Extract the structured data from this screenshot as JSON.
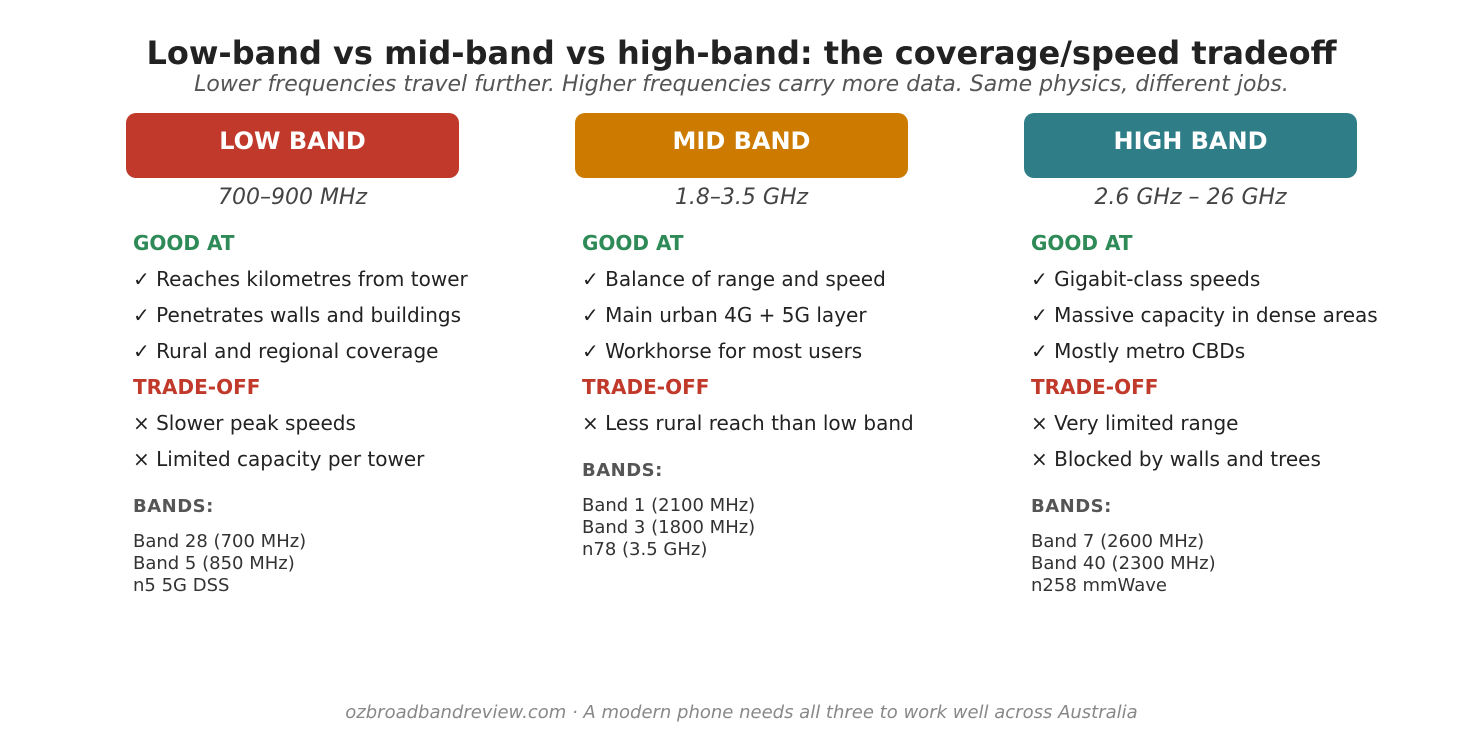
{
  "title": "Low-band vs mid-band vs high-band: the coverage/speed tradeoff",
  "subtitle": "Lower frequencies travel further. Higher frequencies carry more data. Same physics, different jobs.",
  "columns": [
    {
      "header": "LOW BAND",
      "color": "#c0392b",
      "freq": "700–900 MHz",
      "good_label": "GOOD AT",
      "good": [
        "✓ Reaches kilometres from tower",
        "✓ Penetrates walls and buildings",
        "✓ Rural and regional coverage"
      ],
      "trade_label": "TRADE-OFF",
      "trade": [
        "× Slower peak speeds",
        "× Limited capacity per tower"
      ],
      "bands_label": "BANDS:",
      "bands": [
        "Band 28 (700 MHz)",
        "Band 5 (850 MHz)",
        "n5 5G DSS"
      ]
    },
    {
      "header": "MID BAND",
      "color": "#cc7a00",
      "freq": "1.8–3.5 GHz",
      "good_label": "GOOD AT",
      "good": [
        "✓ Balance of range and speed",
        "✓ Main urban 4G + 5G layer",
        "✓ Workhorse for most users"
      ],
      "trade_label": "TRADE-OFF",
      "trade": [
        "× Less rural reach than low band"
      ],
      "bands_label": "BANDS:",
      "bands": [
        "Band 1 (2100 MHz)",
        "Band 3 (1800 MHz)",
        "n78 (3.5 GHz)"
      ]
    },
    {
      "header": "HIGH BAND",
      "color": "#2e7d87",
      "freq": "2.6 GHz – 26 GHz",
      "good_label": "GOOD AT",
      "good": [
        "✓ Gigabit-class speeds",
        "✓ Massive capacity in dense areas",
        "✓ Mostly metro CBDs"
      ],
      "trade_label": "TRADE-OFF",
      "trade": [
        "× Very limited range",
        "× Blocked by walls and trees"
      ],
      "bands_label": "BANDS:",
      "bands": [
        "Band 7 (2600 MHz)",
        "Band 40 (2300 MHz)",
        "n258 mmWave"
      ]
    }
  ],
  "footer": "ozbroadbandreview.com  ·  A modern phone needs all three to work well across Australia"
}
